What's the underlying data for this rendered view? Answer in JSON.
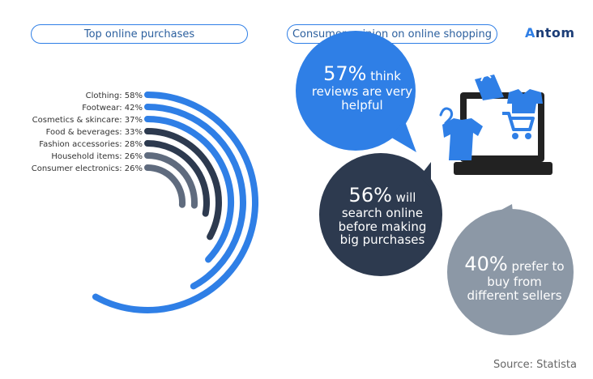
{
  "header": {
    "left_title": "Top online purchases",
    "right_title": "Consumer opinion on online shopping",
    "brand": "Antom"
  },
  "chart_data": {
    "type": "radial-bar",
    "title": "Top online purchases",
    "unit": "%",
    "categories": [
      "Clothing",
      "Footwear",
      "Cosmetics & skincare",
      "Food & beverages",
      "Fashion accessories",
      "Household items",
      "Consumer electronics"
    ],
    "values": [
      58,
      42,
      37,
      33,
      28,
      26,
      26
    ],
    "labels": [
      "Clothing: 58%",
      "Footwear: 42%",
      "Cosmetics & skincare: 37%",
      "Food & beverages: 33%",
      "Fashion accessories: 28%",
      "Household items: 26%",
      "Consumer electronics: 26%"
    ],
    "colors": [
      "#2f7fe6",
      "#2f7fe6",
      "#2f7fe6",
      "#2d3a4f",
      "#2d3a4f",
      "#5f6b7e",
      "#5f6b7e"
    ]
  },
  "opinions": [
    {
      "value": "57%",
      "text_line1": "think",
      "text_line2": "reviews are very",
      "text_line3": "helpful",
      "color": "#2f7fe6"
    },
    {
      "value": "56%",
      "text_line1": "will",
      "text_line2": "search online",
      "text_line3": "before making",
      "text_line4": "big purchases",
      "color": "#2d3a4f"
    },
    {
      "value": "40%",
      "text_line1": "prefer to",
      "text_line2": "buy from",
      "text_line3": "different sellers",
      "color": "#8c98a6"
    }
  ],
  "icons": [
    "laptop-icon",
    "shopping-bag-icon",
    "shopping-cart-icon",
    "t-shirt-icon",
    "hanger-icon"
  ],
  "footer": {
    "source": "Source: Statista"
  }
}
